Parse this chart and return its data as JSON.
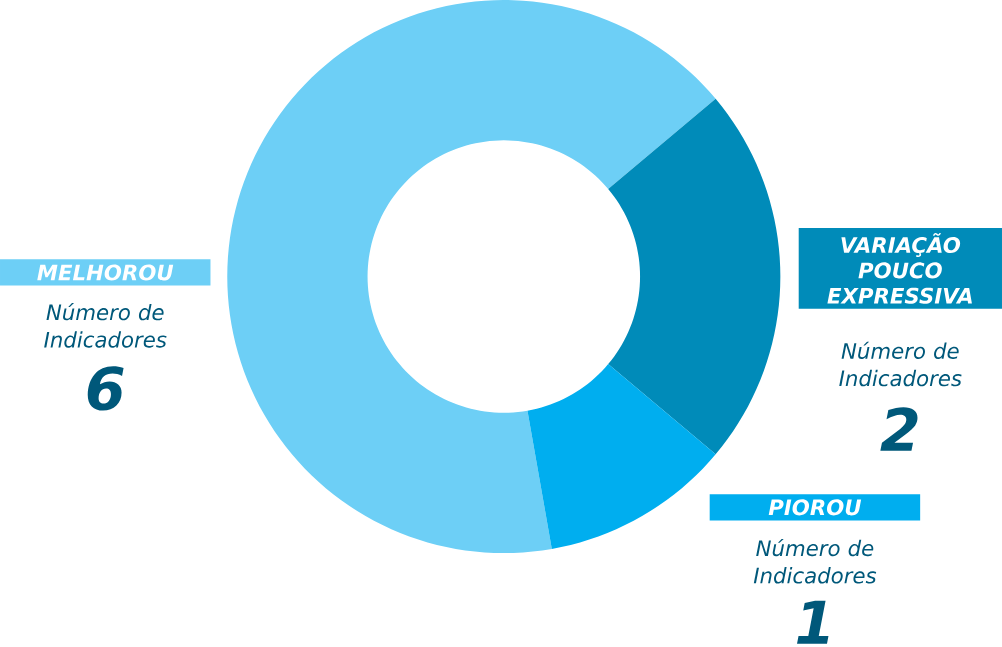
{
  "chart_data": {
    "type": "donut",
    "categories": [
      "MELHOROU",
      "VARIAÇÃO POUCO EXPRESSIVA",
      "PIOROU"
    ],
    "values": [
      6,
      2,
      1
    ],
    "colors": [
      "#6dcff6",
      "#008bb9",
      "#00aeef"
    ],
    "data_labels": true,
    "annotations": [
      "Número de Indicadores",
      "Número de Indicadores",
      "Número de Indicadores"
    ]
  }
}
